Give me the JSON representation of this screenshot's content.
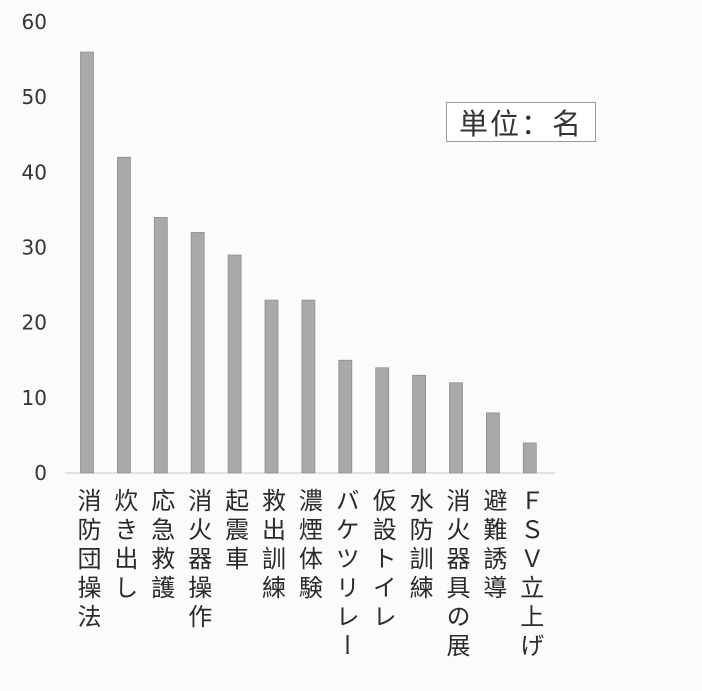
{
  "chart_data": {
    "type": "bar",
    "categories": [
      "消防団操法",
      "炊き出し",
      "応急救護",
      "消火器操作",
      "起震車",
      "救出訓練",
      "濃煙体験",
      "バケツリレー",
      "仮設トイレ",
      "水防訓練",
      "消火器具の展",
      "避難誘導",
      "ＦＳＶ立上げ"
    ],
    "values": [
      56,
      42,
      34,
      32,
      29,
      23,
      23,
      15,
      14,
      13,
      12,
      8,
      4
    ],
    "ylim": [
      0,
      60
    ],
    "yticks": [
      0,
      10,
      20,
      30,
      40,
      50,
      60
    ],
    "unit_note": "単位：名",
    "title": "",
    "xlabel": "",
    "ylabel": "",
    "grid": false,
    "bar_color": "#a9a9a9",
    "bar_edge_color": "#8f8f8f"
  }
}
